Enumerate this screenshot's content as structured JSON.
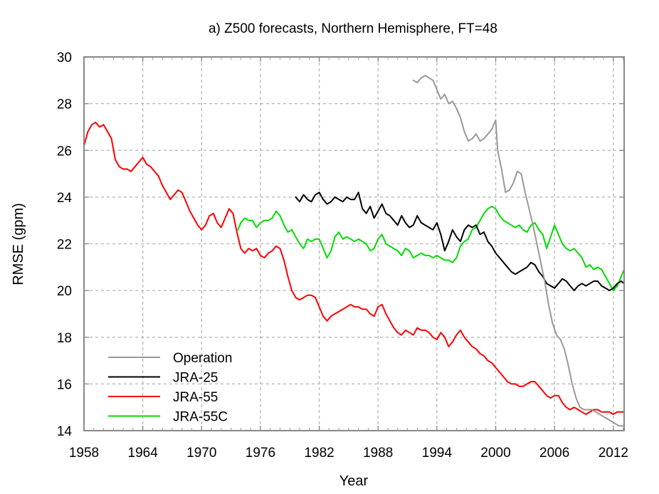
{
  "chart_data": {
    "type": "line",
    "title": "a) Z500 forecasts, Northern Hemisphere, FT=48",
    "xlabel": "Year",
    "ylabel": "RMSE (gpm)",
    "xlim": [
      1958,
      2013.1
    ],
    "ylim": [
      14,
      30
    ],
    "xticks": [
      1958,
      1964,
      1970,
      1976,
      1982,
      1988,
      1994,
      2000,
      2006,
      2012
    ],
    "xtick_labels": [
      "1958",
      "1964",
      "1970",
      "1976",
      "1982",
      "1988",
      "1994",
      "2000",
      "2006",
      "2012"
    ],
    "yticks": [
      14,
      16,
      18,
      20,
      22,
      24,
      26,
      28,
      30
    ],
    "ytick_labels": [
      "14",
      "16",
      "18",
      "20",
      "22",
      "24",
      "26",
      "28",
      "30"
    ],
    "grid": true,
    "legend_position": "bottom-left",
    "series": [
      {
        "name": "Operation",
        "color": "#999999",
        "x": [
          1991.6,
          1992.0,
          1992.4,
          1992.8,
          1993.2,
          1993.6,
          1994.0,
          1994.4,
          1994.8,
          1995.2,
          1995.6,
          1996.0,
          1996.4,
          1996.8,
          1997.2,
          1997.6,
          1998.0,
          1998.4,
          1998.8,
          1999.2,
          1999.6,
          2000.0,
          2000.2,
          2000.6,
          2001.0,
          2001.4,
          2001.8,
          2002.2,
          2002.6,
          2003.0,
          2003.4,
          2003.8,
          2004.2,
          2004.6,
          2005.0,
          2005.4,
          2005.8,
          2006.2,
          2006.6,
          2007.0,
          2007.4,
          2007.8,
          2008.2,
          2008.6,
          2009.0,
          2009.4,
          2009.8,
          2010.2,
          2010.6,
          2011.0,
          2011.4,
          2011.8,
          2012.2,
          2012.6,
          2013.1
        ],
        "y": [
          29.0,
          28.9,
          29.1,
          29.2,
          29.1,
          29.0,
          28.6,
          28.2,
          28.4,
          28.0,
          28.1,
          27.8,
          27.4,
          26.8,
          26.4,
          26.5,
          26.7,
          26.4,
          26.5,
          26.7,
          26.9,
          27.3,
          26.0,
          25.2,
          24.2,
          24.3,
          24.6,
          25.1,
          25.0,
          24.2,
          23.5,
          22.8,
          22.0,
          21.2,
          20.4,
          19.4,
          18.6,
          18.1,
          17.9,
          17.5,
          16.8,
          16.0,
          15.4,
          15.0,
          14.9,
          14.9,
          14.9,
          14.8,
          14.7,
          14.6,
          14.5,
          14.4,
          14.3,
          14.2,
          14.2
        ]
      },
      {
        "name": "JRA-25",
        "color": "#000000",
        "x": [
          1979.6,
          1980.0,
          1980.4,
          1980.8,
          1981.2,
          1981.6,
          1982.0,
          1982.4,
          1982.8,
          1983.2,
          1983.6,
          1984.0,
          1984.4,
          1984.8,
          1985.2,
          1985.6,
          1986.0,
          1986.4,
          1986.8,
          1987.2,
          1987.6,
          1988.0,
          1988.4,
          1988.8,
          1989.2,
          1989.6,
          1990.0,
          1990.4,
          1990.8,
          1991.2,
          1991.6,
          1992.0,
          1992.4,
          1992.8,
          1993.2,
          1993.6,
          1994.0,
          1994.4,
          1994.8,
          1995.2,
          1995.6,
          1996.0,
          1996.4,
          1996.8,
          1997.2,
          1997.6,
          1998.0,
          1998.4,
          1998.8,
          1999.2,
          1999.6,
          2000.0,
          2000.4,
          2000.8,
          2001.2,
          2001.6,
          2002.0,
          2002.4,
          2002.8,
          2003.2,
          2003.6,
          2004.0,
          2004.4,
          2004.8,
          2005.2,
          2005.6,
          2006.0,
          2006.4,
          2006.8,
          2007.2,
          2007.6,
          2008.0,
          2008.4,
          2008.8,
          2009.2,
          2009.6,
          2010.0,
          2010.4,
          2010.8,
          2011.2,
          2011.6,
          2012.0,
          2012.4,
          2012.8,
          2013.1
        ],
        "y": [
          24.0,
          23.8,
          24.1,
          23.9,
          23.8,
          24.1,
          24.2,
          23.9,
          23.7,
          23.8,
          24.0,
          23.9,
          23.8,
          24.0,
          23.9,
          23.9,
          24.2,
          23.5,
          23.3,
          23.6,
          23.1,
          23.4,
          23.7,
          23.3,
          23.2,
          23.0,
          22.8,
          23.2,
          22.9,
          22.7,
          22.8,
          23.2,
          22.9,
          22.8,
          22.7,
          22.6,
          22.9,
          22.4,
          21.7,
          22.1,
          22.6,
          22.3,
          22.1,
          22.6,
          22.8,
          22.7,
          22.8,
          22.4,
          22.5,
          22.1,
          21.9,
          21.6,
          21.4,
          21.2,
          21.0,
          20.8,
          20.7,
          20.8,
          20.9,
          21.0,
          21.2,
          21.1,
          20.8,
          20.6,
          20.3,
          20.2,
          20.1,
          20.3,
          20.5,
          20.4,
          20.2,
          20.0,
          20.2,
          20.3,
          20.2,
          20.3,
          20.4,
          20.4,
          20.2,
          20.1,
          20.0,
          20.1,
          20.3,
          20.4,
          20.3
        ]
      },
      {
        "name": "JRA-55",
        "color": "#ff0000",
        "x": [
          1958.0,
          1958.4,
          1958.8,
          1959.2,
          1959.6,
          1960.0,
          1960.4,
          1960.8,
          1961.2,
          1961.6,
          1962.0,
          1962.4,
          1962.8,
          1963.2,
          1963.6,
          1964.0,
          1964.4,
          1964.8,
          1965.2,
          1965.6,
          1966.0,
          1966.4,
          1966.8,
          1967.2,
          1967.6,
          1968.0,
          1968.4,
          1968.8,
          1969.2,
          1969.6,
          1970.0,
          1970.4,
          1970.8,
          1971.2,
          1971.6,
          1972.0,
          1972.4,
          1972.8,
          1973.2,
          1973.6,
          1974.0,
          1974.4,
          1974.8,
          1975.2,
          1975.6,
          1976.0,
          1976.4,
          1976.8,
          1977.2,
          1977.6,
          1978.0,
          1978.4,
          1978.8,
          1979.2,
          1979.6,
          1980.0,
          1980.4,
          1980.8,
          1981.2,
          1981.6,
          1982.0,
          1982.4,
          1982.8,
          1983.2,
          1983.6,
          1984.0,
          1984.4,
          1984.8,
          1985.2,
          1985.6,
          1986.0,
          1986.4,
          1986.8,
          1987.2,
          1987.6,
          1988.0,
          1988.4,
          1988.8,
          1989.2,
          1989.6,
          1990.0,
          1990.4,
          1990.8,
          1991.2,
          1991.6,
          1992.0,
          1992.4,
          1992.8,
          1993.2,
          1993.6,
          1994.0,
          1994.4,
          1994.8,
          1995.2,
          1995.6,
          1996.0,
          1996.4,
          1996.8,
          1997.2,
          1997.6,
          1998.0,
          1998.4,
          1998.8,
          1999.2,
          1999.6,
          2000.0,
          2000.4,
          2000.8,
          2001.2,
          2001.6,
          2002.0,
          2002.4,
          2002.8,
          2003.2,
          2003.6,
          2004.0,
          2004.4,
          2004.8,
          2005.2,
          2005.6,
          2006.0,
          2006.4,
          2006.8,
          2007.2,
          2007.6,
          2008.0,
          2008.4,
          2008.8,
          2009.2,
          2009.6,
          2010.0,
          2010.4,
          2010.8,
          2011.2,
          2011.6,
          2012.0,
          2012.4,
          2012.8,
          2013.1
        ],
        "y": [
          26.2,
          26.8,
          27.1,
          27.2,
          27.0,
          27.1,
          26.8,
          26.5,
          25.6,
          25.3,
          25.2,
          25.2,
          25.1,
          25.3,
          25.5,
          25.7,
          25.4,
          25.3,
          25.1,
          24.9,
          24.5,
          24.2,
          23.9,
          24.1,
          24.3,
          24.2,
          23.8,
          23.4,
          23.1,
          22.8,
          22.6,
          22.8,
          23.2,
          23.3,
          22.9,
          22.7,
          23.1,
          23.5,
          23.3,
          22.5,
          21.8,
          21.6,
          21.8,
          21.7,
          21.8,
          21.5,
          21.4,
          21.6,
          21.7,
          21.9,
          21.8,
          21.3,
          20.6,
          20.0,
          19.7,
          19.6,
          19.7,
          19.8,
          19.8,
          19.7,
          19.3,
          18.9,
          18.7,
          18.9,
          19.0,
          19.1,
          19.2,
          19.3,
          19.4,
          19.3,
          19.3,
          19.2,
          19.2,
          19.0,
          18.9,
          19.3,
          19.4,
          19.0,
          18.7,
          18.4,
          18.2,
          18.1,
          18.3,
          18.2,
          18.1,
          18.4,
          18.3,
          18.3,
          18.2,
          18.0,
          17.9,
          18.2,
          18.0,
          17.6,
          17.8,
          18.1,
          18.3,
          18.0,
          17.8,
          17.6,
          17.5,
          17.3,
          17.2,
          17.0,
          16.9,
          16.7,
          16.5,
          16.3,
          16.1,
          16.0,
          16.0,
          15.9,
          15.9,
          16.0,
          16.1,
          16.1,
          15.9,
          15.7,
          15.5,
          15.4,
          15.5,
          15.5,
          15.2,
          15.0,
          14.9,
          15.0,
          14.9,
          14.8,
          14.7,
          14.8,
          14.9,
          14.9,
          14.8,
          14.8,
          14.8,
          14.7,
          14.8,
          14.8,
          14.8
        ]
      },
      {
        "name": "JRA-55C",
        "color": "#00dd00",
        "x": [
          1973.7,
          1974.0,
          1974.4,
          1974.8,
          1975.2,
          1975.6,
          1976.0,
          1976.4,
          1976.8,
          1977.2,
          1977.6,
          1978.0,
          1978.4,
          1978.8,
          1979.2,
          1979.6,
          1980.0,
          1980.4,
          1980.8,
          1981.2,
          1981.6,
          1982.0,
          1982.4,
          1982.8,
          1983.2,
          1983.6,
          1984.0,
          1984.4,
          1984.8,
          1985.2,
          1985.6,
          1986.0,
          1986.4,
          1986.8,
          1987.2,
          1987.6,
          1988.0,
          1988.4,
          1988.8,
          1989.2,
          1989.6,
          1990.0,
          1990.4,
          1990.8,
          1991.2,
          1991.6,
          1992.0,
          1992.4,
          1992.8,
          1993.2,
          1993.6,
          1994.0,
          1994.4,
          1994.8,
          1995.2,
          1995.6,
          1996.0,
          1996.4,
          1996.8,
          1997.2,
          1997.6,
          1998.0,
          1998.4,
          1998.8,
          1999.2,
          1999.6,
          2000.0,
          2000.4,
          2000.8,
          2001.2,
          2001.6,
          2002.0,
          2002.4,
          2002.8,
          2003.2,
          2003.6,
          2004.0,
          2004.4,
          2004.8,
          2005.2,
          2005.6,
          2006.0,
          2006.4,
          2006.8,
          2007.2,
          2007.6,
          2008.0,
          2008.4,
          2008.8,
          2009.2,
          2009.6,
          2010.0,
          2010.4,
          2010.8,
          2011.2,
          2011.6,
          2012.0,
          2012.4,
          2012.8,
          2013.1
        ],
        "y": [
          22.6,
          22.9,
          23.1,
          23.0,
          23.0,
          22.7,
          22.9,
          23.0,
          23.0,
          23.1,
          23.4,
          23.2,
          22.8,
          22.5,
          22.6,
          22.3,
          22.0,
          21.8,
          22.2,
          22.1,
          22.2,
          22.2,
          21.8,
          21.4,
          21.7,
          22.3,
          22.5,
          22.2,
          22.3,
          22.2,
          22.1,
          22.2,
          22.1,
          22.0,
          21.7,
          21.8,
          22.2,
          22.4,
          22.0,
          21.9,
          21.8,
          21.7,
          21.5,
          21.8,
          21.7,
          21.4,
          21.5,
          21.6,
          21.5,
          21.5,
          21.4,
          21.5,
          21.4,
          21.3,
          21.3,
          21.2,
          21.4,
          21.9,
          22.1,
          22.2,
          22.6,
          22.7,
          23.0,
          23.3,
          23.5,
          23.6,
          23.5,
          23.2,
          23.0,
          22.9,
          22.8,
          22.7,
          22.8,
          22.6,
          22.5,
          22.8,
          22.9,
          22.6,
          22.4,
          21.8,
          22.3,
          22.8,
          22.4,
          22.0,
          21.8,
          21.7,
          21.8,
          21.6,
          21.4,
          21.0,
          21.1,
          20.9,
          21.0,
          20.9,
          20.6,
          20.3,
          20.0,
          20.2,
          20.6,
          20.9
        ]
      }
    ]
  }
}
